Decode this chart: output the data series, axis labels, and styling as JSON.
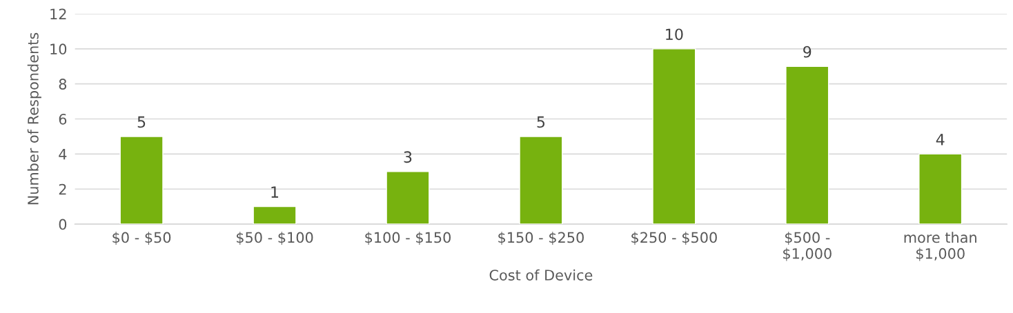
{
  "chart_data": {
    "type": "bar",
    "xlabel": "Cost of Device",
    "ylabel": "Number of Respondents",
    "categories": [
      "$0 - $50",
      "$50 - $100",
      "$100 - $150",
      "$150 - $250",
      "$250 - $500",
      "$500 -\n$1,000",
      "more than\n$1,000"
    ],
    "values": [
      5,
      1,
      3,
      5,
      10,
      9,
      4
    ],
    "color": "#77b20f",
    "ylim": [
      0,
      12
    ],
    "yticks": [
      0,
      2,
      4,
      6,
      8,
      10,
      12
    ],
    "grid": "y",
    "data_labels": true
  }
}
